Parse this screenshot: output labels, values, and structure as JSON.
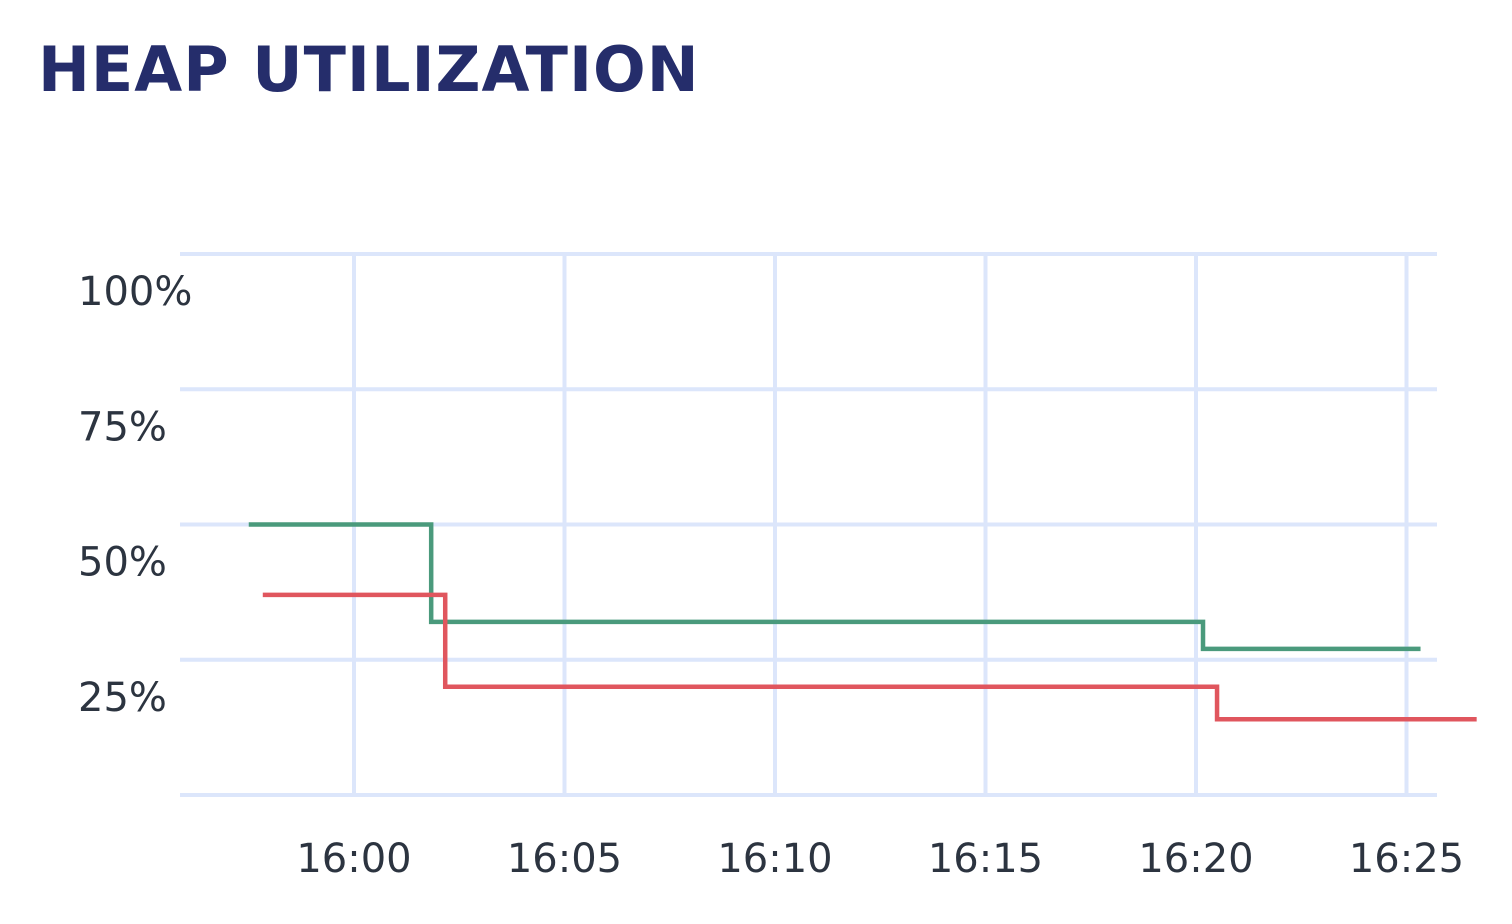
{
  "title": "HEAP UTILIZATION",
  "chart_data": {
    "type": "line",
    "interpolation": "step-after",
    "title": "HEAP UTILIZATION",
    "xlabel": "",
    "ylabel": "",
    "x_ticks": [
      "16:00",
      "16:05",
      "16:10",
      "16:15",
      "16:20",
      "16:25"
    ],
    "x_tick_minutes": [
      960,
      965,
      970,
      975,
      980,
      985
    ],
    "xlim": [
      "15:55:50",
      "16:26:40"
    ],
    "y_ticks": [
      {
        "value": 25,
        "label": "25%"
      },
      {
        "value": 50,
        "label": "50%"
      },
      {
        "value": 75,
        "label": "75%"
      },
      {
        "value": 100,
        "label": "100%"
      }
    ],
    "ylim": [
      0,
      100
    ],
    "grid": true,
    "series": [
      {
        "color": "#4a9a7c",
        "points": [
          {
            "x": "15:57:30",
            "y": 50
          },
          {
            "x": "16:01:50",
            "y": 32
          },
          {
            "x": "16:20:10",
            "y": 27
          },
          {
            "x": "16:25:20",
            "y": 27
          }
        ]
      },
      {
        "color": "#e0565e",
        "points": [
          {
            "x": "15:57:50",
            "y": 37
          },
          {
            "x": "16:02:10",
            "y": 20
          },
          {
            "x": "16:20:30",
            "y": 14
          },
          {
            "x": "16:26:40",
            "y": 14
          }
        ]
      }
    ],
    "colors": {
      "grid": "#dce6fb",
      "title": "#252d6b",
      "tick_text": "#2c3440"
    }
  }
}
